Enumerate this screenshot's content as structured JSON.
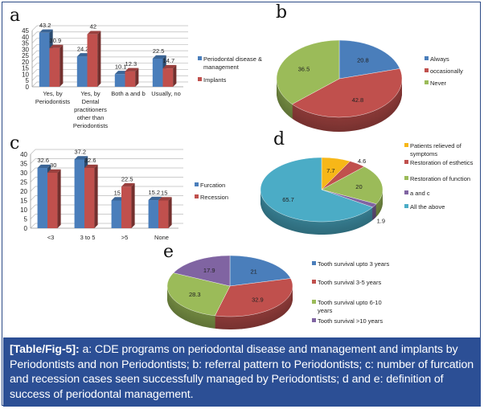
{
  "chart_data": [
    {
      "id": "a",
      "type": "bar",
      "panel_label": "a",
      "categories": [
        [
          "Yes, by",
          "Periodontists"
        ],
        [
          "Yes, by",
          "Dental",
          "practitioners",
          "other than",
          "Periodontists"
        ],
        [
          "Both a and b"
        ],
        [
          "Usually, no"
        ]
      ],
      "series": [
        {
          "name": "Periodontal disease & management",
          "legend_lines": [
            "Periodontal disease &",
            "management"
          ],
          "values": [
            43.2,
            24.2,
            10.1,
            22.5
          ],
          "color": "#4a7ebb"
        },
        {
          "name": "Implants",
          "legend_lines": [
            "Implants"
          ],
          "values": [
            30.9,
            42,
            12.3,
            14.7
          ],
          "color": "#c0504d"
        }
      ],
      "yticks": [
        0,
        5,
        10,
        15,
        20,
        25,
        30,
        35,
        40,
        45
      ],
      "ylim": [
        0,
        45
      ],
      "grid": true,
      "legend": "right"
    },
    {
      "id": "b",
      "type": "pie",
      "panel_label": "b",
      "labels": [
        "Always",
        "occasionally",
        "Never"
      ],
      "values": [
        20.8,
        42.8,
        36.5
      ],
      "value_labels": [
        "20.8",
        "42.8",
        "36.5"
      ],
      "colors": [
        "#4a7ebb",
        "#c0504d",
        "#9bbb59"
      ],
      "legend": "right"
    },
    {
      "id": "c",
      "type": "bar",
      "panel_label": "c",
      "categories": [
        [
          "<3"
        ],
        [
          "3 to 5"
        ],
        [
          ">5"
        ],
        [
          "None"
        ]
      ],
      "series": [
        {
          "name": "Furcation",
          "legend_lines": [
            "Furcation"
          ],
          "values": [
            32.6,
            37.2,
            15,
            15.2
          ],
          "color": "#4a7ebb"
        },
        {
          "name": "Recession",
          "legend_lines": [
            "Recession"
          ],
          "values": [
            30,
            32.6,
            22.5,
            15
          ],
          "color": "#c0504d"
        }
      ],
      "yticks": [
        0,
        5,
        10,
        15,
        20,
        25,
        30,
        35,
        40
      ],
      "ylim": [
        0,
        40
      ],
      "grid": true,
      "legend": "right"
    },
    {
      "id": "d",
      "type": "pie",
      "panel_label": "d",
      "labels": [
        "Patients relieved of symptoms",
        "Restoration of esthetics",
        "Restoration of function",
        "a and c",
        "All the above"
      ],
      "legend_lines": [
        [
          "Patients relieved of",
          "symptoms"
        ],
        [
          "Restoration of esthetics"
        ],
        [
          "Restoration of function"
        ],
        [
          "a and c"
        ],
        [
          "All the above"
        ]
      ],
      "values": [
        7.7,
        4.6,
        20,
        1.9,
        65.7
      ],
      "value_labels": [
        "7.7",
        "4.6",
        "20",
        "1.9",
        "65.7"
      ],
      "colors": [
        "#f7b718",
        "#c0504d",
        "#9bbb59",
        "#8064a2",
        "#4bacc6"
      ],
      "legend": "right"
    },
    {
      "id": "e",
      "type": "pie",
      "panel_label": "e",
      "labels": [
        "Tooth survival upto 3 years",
        "Tooth survival 3-5 years",
        "Tooth survival upto 6-10 years",
        "Tooth survival >10 years"
      ],
      "legend_lines": [
        [
          "Tooth survival upto 3 years"
        ],
        [
          "Tooth survival 3-5 years"
        ],
        [
          "Tooth survival upto 6-10",
          "years"
        ],
        [
          "Tooth survival >10 years"
        ]
      ],
      "values": [
        21,
        32.9,
        28.3,
        17.9
      ],
      "value_labels": [
        "21",
        "32.9",
        "28.3",
        "17.9"
      ],
      "colors": [
        "#4a7ebb",
        "#c0504d",
        "#9bbb59",
        "#8064a2"
      ],
      "legend": "right"
    }
  ],
  "caption": {
    "label": "[Table/Fig-5]:",
    "text": " a: CDE programs on periodontal disease and management and implants by Periodontists and non Periodontists; b: referral pattern to Periodontists; c: number of furcation and recession cases seen successfully managed by Periodontists; d and e: definition of success of periodontal management."
  }
}
